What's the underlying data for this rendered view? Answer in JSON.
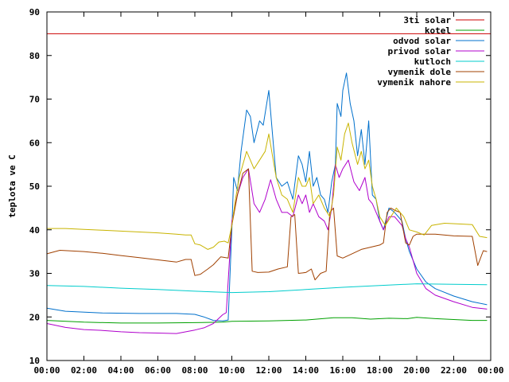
{
  "chart_data": {
    "type": "line",
    "title": "",
    "xlabel": "",
    "ylabel": "teplota ve C",
    "xlim": [
      0,
      24
    ],
    "ylim": [
      10,
      90
    ],
    "grid": false,
    "legend_position": "top-right",
    "x_ticks": [
      {
        "value": 0,
        "label": "00:00"
      },
      {
        "value": 2,
        "label": "02:00"
      },
      {
        "value": 4,
        "label": "04:00"
      },
      {
        "value": 6,
        "label": "06:00"
      },
      {
        "value": 8,
        "label": "08:00"
      },
      {
        "value": 10,
        "label": "10:00"
      },
      {
        "value": 12,
        "label": "12:00"
      },
      {
        "value": 14,
        "label": "14:00"
      },
      {
        "value": 16,
        "label": "16:00"
      },
      {
        "value": 18,
        "label": "18:00"
      },
      {
        "value": 20,
        "label": "20:00"
      },
      {
        "value": 22,
        "label": "22:00"
      },
      {
        "value": 24,
        "label": "00:00"
      }
    ],
    "y_ticks": [
      {
        "value": 10,
        "label": "10"
      },
      {
        "value": 20,
        "label": "20"
      },
      {
        "value": 30,
        "label": "30"
      },
      {
        "value": 40,
        "label": "40"
      },
      {
        "value": 50,
        "label": "50"
      },
      {
        "value": 60,
        "label": "60"
      },
      {
        "value": 70,
        "label": "70"
      },
      {
        "value": 80,
        "label": "80"
      },
      {
        "value": 90,
        "label": "90"
      }
    ],
    "series": [
      {
        "name": "3ti solar",
        "color": "#cc0000",
        "points": [
          [
            0,
            85
          ],
          [
            24,
            85
          ]
        ]
      },
      {
        "name": "kotel",
        "color": "#00a000",
        "points": [
          [
            0,
            19.2
          ],
          [
            2,
            18.8
          ],
          [
            4,
            18.6
          ],
          [
            6,
            18.6
          ],
          [
            8,
            18.7
          ],
          [
            9.5,
            18.8
          ],
          [
            10,
            19.0
          ],
          [
            12,
            19.1
          ],
          [
            14,
            19.3
          ],
          [
            15.5,
            19.8
          ],
          [
            16.5,
            19.8
          ],
          [
            17.5,
            19.5
          ],
          [
            18.5,
            19.7
          ],
          [
            19.5,
            19.6
          ],
          [
            20,
            19.9
          ],
          [
            21,
            19.6
          ],
          [
            22,
            19.4
          ],
          [
            23,
            19.2
          ],
          [
            23.8,
            19.2
          ]
        ]
      },
      {
        "name": "odvod solar",
        "color": "#0070cc",
        "points": [
          [
            0,
            22
          ],
          [
            1,
            21.3
          ],
          [
            3,
            20.9
          ],
          [
            5,
            20.8
          ],
          [
            7,
            20.8
          ],
          [
            8,
            20.6
          ],
          [
            8.5,
            20.0
          ],
          [
            9,
            19.2
          ],
          [
            9.5,
            19.1
          ],
          [
            9.8,
            19.3
          ],
          [
            10.0,
            40
          ],
          [
            10.1,
            52
          ],
          [
            10.3,
            49
          ],
          [
            10.5,
            58
          ],
          [
            10.8,
            67.5
          ],
          [
            11.0,
            66
          ],
          [
            11.2,
            60
          ],
          [
            11.5,
            65
          ],
          [
            11.7,
            64
          ],
          [
            12.0,
            72
          ],
          [
            12.2,
            62
          ],
          [
            12.4,
            52
          ],
          [
            12.7,
            50
          ],
          [
            13.0,
            51
          ],
          [
            13.3,
            47
          ],
          [
            13.6,
            57
          ],
          [
            13.8,
            55
          ],
          [
            14.0,
            51
          ],
          [
            14.2,
            58
          ],
          [
            14.4,
            50
          ],
          [
            14.6,
            52
          ],
          [
            14.8,
            48
          ],
          [
            15.0,
            47
          ],
          [
            15.2,
            44
          ],
          [
            15.4,
            51
          ],
          [
            15.6,
            55
          ],
          [
            15.7,
            69
          ],
          [
            15.9,
            66
          ],
          [
            16.0,
            72
          ],
          [
            16.2,
            76
          ],
          [
            16.4,
            69
          ],
          [
            16.6,
            65
          ],
          [
            16.8,
            57
          ],
          [
            17.0,
            63
          ],
          [
            17.2,
            55
          ],
          [
            17.4,
            65
          ],
          [
            17.6,
            48
          ],
          [
            17.8,
            47
          ],
          [
            18.0,
            42
          ],
          [
            18.2,
            40
          ],
          [
            18.5,
            45
          ],
          [
            18.8,
            44
          ],
          [
            19.0,
            43
          ],
          [
            19.2,
            42
          ],
          [
            19.4,
            38
          ],
          [
            19.6,
            35
          ],
          [
            20.0,
            31
          ],
          [
            20.5,
            28
          ],
          [
            21,
            26.5
          ],
          [
            22,
            24.8
          ],
          [
            23,
            23.5
          ],
          [
            23.8,
            22.8
          ]
        ]
      },
      {
        "name": "privod solar",
        "color": "#b000cc",
        "points": [
          [
            0,
            18.5
          ],
          [
            1,
            17.6
          ],
          [
            2,
            17.1
          ],
          [
            3,
            16.9
          ],
          [
            4,
            16.6
          ],
          [
            5,
            16.4
          ],
          [
            6,
            16.3
          ],
          [
            7,
            16.2
          ],
          [
            8,
            17.0
          ],
          [
            8.5,
            17.5
          ],
          [
            9,
            18.5
          ],
          [
            9.5,
            20.5
          ],
          [
            9.7,
            21
          ],
          [
            10.0,
            42
          ],
          [
            10.3,
            48
          ],
          [
            10.6,
            52
          ],
          [
            10.9,
            54
          ],
          [
            11.2,
            46
          ],
          [
            11.5,
            44
          ],
          [
            11.8,
            47
          ],
          [
            12.1,
            51.5
          ],
          [
            12.4,
            47
          ],
          [
            12.7,
            44
          ],
          [
            13.0,
            44
          ],
          [
            13.3,
            43
          ],
          [
            13.6,
            48
          ],
          [
            13.8,
            46
          ],
          [
            14.0,
            48
          ],
          [
            14.2,
            44
          ],
          [
            14.4,
            46
          ],
          [
            14.7,
            43
          ],
          [
            15.0,
            42
          ],
          [
            15.2,
            40
          ],
          [
            15.4,
            45
          ],
          [
            15.6,
            55
          ],
          [
            15.8,
            52
          ],
          [
            16.0,
            54
          ],
          [
            16.3,
            56
          ],
          [
            16.6,
            51
          ],
          [
            16.9,
            49
          ],
          [
            17.2,
            52
          ],
          [
            17.4,
            47
          ],
          [
            17.6,
            46
          ],
          [
            17.8,
            44
          ],
          [
            18.0,
            42
          ],
          [
            18.2,
            40
          ],
          [
            18.5,
            43
          ],
          [
            18.8,
            43
          ],
          [
            19.0,
            42
          ],
          [
            19.2,
            41
          ],
          [
            19.4,
            38
          ],
          [
            19.6,
            36
          ],
          [
            20.0,
            30
          ],
          [
            20.5,
            26.5
          ],
          [
            21,
            25
          ],
          [
            22,
            23.5
          ],
          [
            23,
            22.2
          ],
          [
            23.8,
            21.8
          ]
        ]
      },
      {
        "name": "kutloch",
        "color": "#00cccc",
        "points": [
          [
            0,
            27.2
          ],
          [
            2,
            27.0
          ],
          [
            4,
            26.6
          ],
          [
            6,
            26.3
          ],
          [
            8,
            25.9
          ],
          [
            10,
            25.6
          ],
          [
            12,
            25.8
          ],
          [
            14,
            26.3
          ],
          [
            16,
            26.8
          ],
          [
            18,
            27.2
          ],
          [
            20,
            27.6
          ],
          [
            22,
            27.5
          ],
          [
            23.8,
            27.4
          ]
        ]
      },
      {
        "name": "vymenik dole",
        "color": "#a04000",
        "points": [
          [
            0,
            34.5
          ],
          [
            0.7,
            35.3
          ],
          [
            2,
            35.0
          ],
          [
            3,
            34.6
          ],
          [
            4,
            34.1
          ],
          [
            5,
            33.6
          ],
          [
            6,
            33.1
          ],
          [
            7,
            32.6
          ],
          [
            7.5,
            33.2
          ],
          [
            7.8,
            33.2
          ],
          [
            8.0,
            29.5
          ],
          [
            8.3,
            29.8
          ],
          [
            8.7,
            31
          ],
          [
            9,
            32
          ],
          [
            9.4,
            33.8
          ],
          [
            9.8,
            33.5
          ],
          [
            10.0,
            41
          ],
          [
            10.3,
            48
          ],
          [
            10.6,
            53
          ],
          [
            10.9,
            54
          ],
          [
            11.1,
            30.5
          ],
          [
            11.4,
            30.2
          ],
          [
            12.0,
            30.3
          ],
          [
            12.5,
            31
          ],
          [
            13.0,
            31.5
          ],
          [
            13.2,
            43
          ],
          [
            13.4,
            43.5
          ],
          [
            13.6,
            30
          ],
          [
            14.0,
            30.2
          ],
          [
            14.3,
            31
          ],
          [
            14.5,
            28.5
          ],
          [
            14.8,
            30
          ],
          [
            15.1,
            30.5
          ],
          [
            15.3,
            44
          ],
          [
            15.5,
            45
          ],
          [
            15.7,
            34
          ],
          [
            16.0,
            33.5
          ],
          [
            16.5,
            34.5
          ],
          [
            17.0,
            35.5
          ],
          [
            17.5,
            36
          ],
          [
            18.0,
            36.5
          ],
          [
            18.2,
            37
          ],
          [
            18.4,
            44
          ],
          [
            18.6,
            45
          ],
          [
            18.8,
            44.5
          ],
          [
            19.1,
            44
          ],
          [
            19.4,
            37
          ],
          [
            19.6,
            36.5
          ],
          [
            19.8,
            38.5
          ],
          [
            20.0,
            39
          ],
          [
            21,
            39
          ],
          [
            22,
            38.6
          ],
          [
            23,
            38.5
          ],
          [
            23.3,
            31.8
          ],
          [
            23.6,
            35.2
          ],
          [
            23.8,
            35.0
          ]
        ]
      },
      {
        "name": "vymenik nahore",
        "color": "#c8b400",
        "points": [
          [
            0,
            40.3
          ],
          [
            1,
            40.3
          ],
          [
            2,
            40.1
          ],
          [
            3,
            39.9
          ],
          [
            4,
            39.7
          ],
          [
            5,
            39.5
          ],
          [
            6,
            39.3
          ],
          [
            7,
            39.0
          ],
          [
            7.5,
            38.8
          ],
          [
            7.8,
            38.8
          ],
          [
            8.0,
            36.8
          ],
          [
            8.3,
            36.5
          ],
          [
            8.7,
            35.5
          ],
          [
            9.0,
            36.0
          ],
          [
            9.3,
            37.2
          ],
          [
            9.6,
            37.4
          ],
          [
            9.8,
            37
          ],
          [
            10.0,
            41
          ],
          [
            10.2,
            47
          ],
          [
            10.4,
            52
          ],
          [
            10.6,
            55
          ],
          [
            10.8,
            58
          ],
          [
            11.0,
            56
          ],
          [
            11.2,
            54
          ],
          [
            11.5,
            56
          ],
          [
            11.8,
            58
          ],
          [
            12.0,
            62
          ],
          [
            12.2,
            57
          ],
          [
            12.4,
            52
          ],
          [
            12.7,
            48
          ],
          [
            13.0,
            47
          ],
          [
            13.3,
            44
          ],
          [
            13.6,
            52
          ],
          [
            13.8,
            50
          ],
          [
            14.0,
            50
          ],
          [
            14.2,
            52
          ],
          [
            14.4,
            46
          ],
          [
            14.7,
            48
          ],
          [
            15.0,
            45
          ],
          [
            15.3,
            43
          ],
          [
            15.5,
            48
          ],
          [
            15.7,
            59
          ],
          [
            15.9,
            56
          ],
          [
            16.1,
            62
          ],
          [
            16.3,
            64.5
          ],
          [
            16.5,
            60
          ],
          [
            16.8,
            55
          ],
          [
            17.0,
            58
          ],
          [
            17.2,
            54
          ],
          [
            17.4,
            56
          ],
          [
            17.6,
            50
          ],
          [
            17.8,
            47
          ],
          [
            18.0,
            43
          ],
          [
            18.3,
            41
          ],
          [
            18.6,
            43
          ],
          [
            18.9,
            45
          ],
          [
            19.1,
            44
          ],
          [
            19.3,
            43
          ],
          [
            19.6,
            40
          ],
          [
            20.0,
            39.5
          ],
          [
            20.4,
            38.8
          ],
          [
            20.8,
            41
          ],
          [
            21.5,
            41.5
          ],
          [
            22.5,
            41.3
          ],
          [
            23.0,
            41.2
          ],
          [
            23.4,
            38.5
          ],
          [
            23.8,
            38.2
          ]
        ]
      }
    ]
  }
}
